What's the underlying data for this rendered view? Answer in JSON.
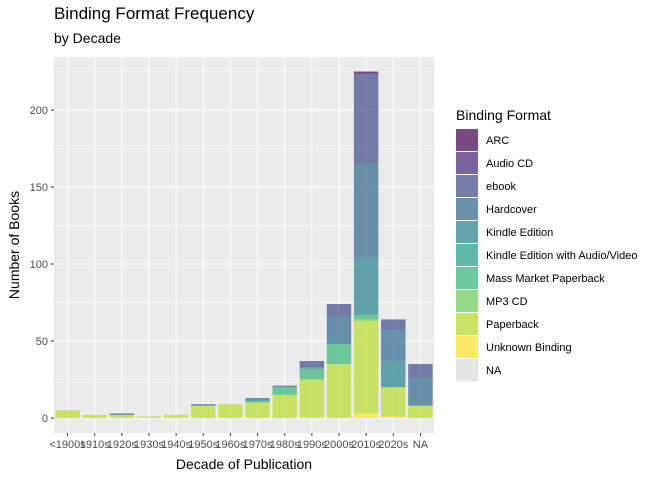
{
  "chart_data": {
    "type": "bar",
    "stacked": true,
    "title": "Binding Format Frequency",
    "subtitle": "by Decade",
    "xlabel": "Decade of Publication",
    "ylabel": "Number of Books",
    "ylim": [
      0,
      235
    ],
    "yticks": [
      0,
      50,
      100,
      150,
      200
    ],
    "grid": true,
    "legend_position": "right",
    "legend_title": "Binding Format",
    "categories": [
      "<1900s",
      "1910s",
      "1920s",
      "1930s",
      "1940s",
      "1950s",
      "1960s",
      "1970s",
      "1980s",
      "1990s",
      "2000s",
      "2010s",
      "2020s",
      "NA"
    ],
    "tick_labels": [
      "<1900s",
      "1910s",
      "1920s",
      "1930s",
      "1940s",
      "1950s",
      "1960s",
      "1970s",
      "1980s",
      "1990s",
      "2000s",
      "2010s",
      "2020s",
      "NA"
    ],
    "series": [
      {
        "name": "Unknown Binding",
        "color": "#FDE725",
        "values": [
          0,
          0,
          0,
          0,
          0,
          0,
          0,
          0,
          0,
          0,
          0,
          3,
          1,
          0
        ]
      },
      {
        "name": "Paperback",
        "color": "#B8DE29",
        "values": [
          5,
          2,
          2,
          1,
          2,
          8,
          9,
          10,
          15,
          25,
          35,
          60,
          19,
          8
        ]
      },
      {
        "name": "MP3 CD",
        "color": "#6CCE59",
        "values": [
          0,
          0,
          0,
          0,
          0,
          0,
          0,
          0,
          0,
          0,
          0,
          1,
          0,
          0
        ]
      },
      {
        "name": "Mass Market Paperback",
        "color": "#35B779",
        "values": [
          0,
          0,
          0,
          0,
          0,
          0,
          0,
          1,
          5,
          7,
          13,
          3,
          0,
          0
        ]
      },
      {
        "name": "Kindle Edition with Audio/Video",
        "color": "#1F9E89",
        "values": [
          0,
          0,
          0,
          0,
          0,
          0,
          0,
          0,
          0,
          0,
          0,
          0,
          0,
          0
        ]
      },
      {
        "name": "Kindle Edition",
        "color": "#26828E",
        "values": [
          0,
          0,
          0,
          0,
          0,
          0,
          0,
          1,
          0,
          0,
          0,
          37,
          17,
          0
        ]
      },
      {
        "name": "Hardcover",
        "color": "#31688E",
        "values": [
          0,
          0,
          1,
          0,
          0,
          1,
          0,
          1,
          1,
          1,
          18,
          61,
          20,
          18
        ]
      },
      {
        "name": "ebook",
        "color": "#3E4A89",
        "values": [
          0,
          0,
          0,
          0,
          0,
          0,
          0,
          0,
          0,
          4,
          8,
          58,
          7,
          9
        ]
      },
      {
        "name": "Audio CD",
        "color": "#482878",
        "values": [
          0,
          0,
          0,
          0,
          0,
          0,
          0,
          0,
          0,
          0,
          0,
          1,
          0,
          0
        ]
      },
      {
        "name": "ARC",
        "color": "#440154",
        "values": [
          0,
          0,
          0,
          0,
          0,
          0,
          0,
          0,
          0,
          0,
          0,
          1,
          0,
          0
        ]
      },
      {
        "name": "NA",
        "color": "#E5E5E5",
        "values": [
          0,
          0,
          0,
          0,
          0,
          0,
          0,
          0,
          0,
          0,
          0,
          0,
          0,
          0
        ]
      }
    ],
    "legend_order": [
      "ARC",
      "Audio CD",
      "ebook",
      "Hardcover",
      "Kindle Edition",
      "Kindle Edition with Audio/Video",
      "Mass Market Paperback",
      "MP3 CD",
      "Paperback",
      "Unknown Binding",
      "NA"
    ]
  }
}
